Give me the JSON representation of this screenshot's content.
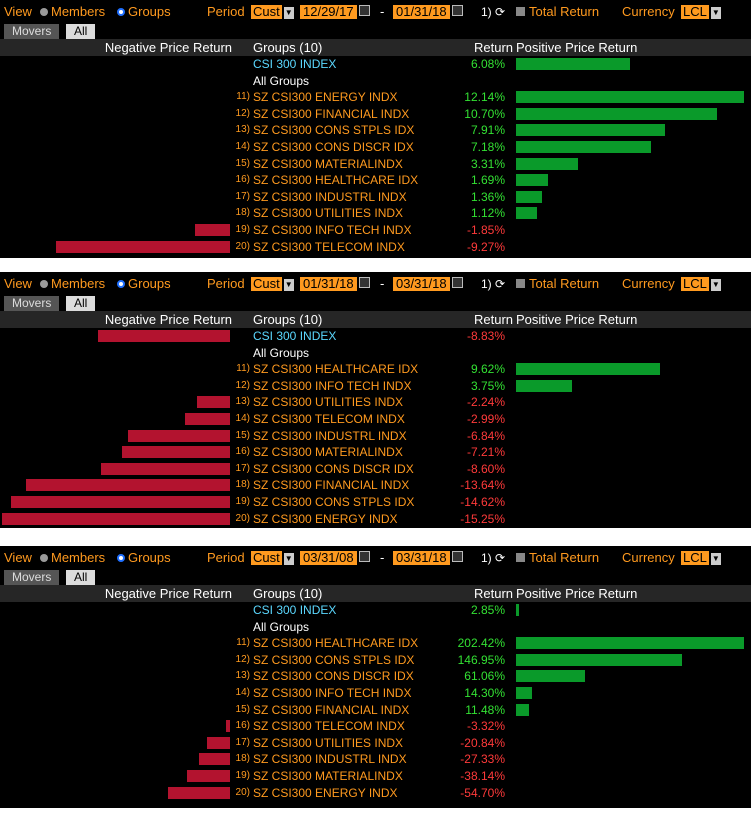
{
  "labels": {
    "view": "View",
    "members": "Members",
    "groups": "Groups",
    "period": "Period",
    "cust": "Cust",
    "dash": "-",
    "refresh": "1)",
    "total_return": "Total Return",
    "currency": "Currency",
    "lcl": "LCL",
    "tab_movers": "Movers",
    "tab_all": "All",
    "neg_header": "Negative Price Return",
    "groups_header": "Groups (10)",
    "return_header": "Return",
    "pos_header": "Positive Price Return",
    "all_groups": "All Groups"
  },
  "colors": {
    "accent": "#ff9a1f",
    "positive_bar": "#0a9a2a",
    "negative_bar": "#b3132f",
    "positive_text": "#33e133",
    "negative_text": "#ff3a3a",
    "index_text": "#5bd8ff"
  },
  "panels": [
    {
      "start_date": "12/29/17",
      "end_date": "01/31/18",
      "index": {
        "name": "CSI 300 INDEX",
        "ret": "6.08%",
        "value": 6.08
      },
      "max_pos": 12.14,
      "max_neg": 9.27,
      "groups": [
        {
          "num": "11)",
          "name": "SZ CSI300 ENERGY INDX",
          "ret": "12.14%",
          "value": 12.14
        },
        {
          "num": "12)",
          "name": "SZ CSI300 FINANCIAL INDX",
          "ret": "10.70%",
          "value": 10.7
        },
        {
          "num": "13)",
          "name": "SZ CSI300 CONS STPLS IDX",
          "ret": "7.91%",
          "value": 7.91
        },
        {
          "num": "14)",
          "name": "SZ CSI300 CONS DISCR IDX",
          "ret": "7.18%",
          "value": 7.18
        },
        {
          "num": "15)",
          "name": "SZ CSI300 MATERIALINDX",
          "ret": "3.31%",
          "value": 3.31
        },
        {
          "num": "16)",
          "name": "SZ CSI300 HEALTHCARE IDX",
          "ret": "1.69%",
          "value": 1.69
        },
        {
          "num": "17)",
          "name": "SZ CSI300 INDUSTRL INDX",
          "ret": "1.36%",
          "value": 1.36
        },
        {
          "num": "18)",
          "name": "SZ CSI300 UTILITIES INDX",
          "ret": "1.12%",
          "value": 1.12
        },
        {
          "num": "19)",
          "name": "SZ CSI300 INFO TECH INDX",
          "ret": "-1.85%",
          "value": -1.85
        },
        {
          "num": "20)",
          "name": "SZ CSI300 TELECOM INDX",
          "ret": "-9.27%",
          "value": -9.27
        }
      ]
    },
    {
      "start_date": "01/31/18",
      "end_date": "03/31/18",
      "index": {
        "name": "CSI 300 INDEX",
        "ret": "-8.83%",
        "value": -8.83
      },
      "max_pos": 9.62,
      "max_neg": 15.25,
      "groups": [
        {
          "num": "11)",
          "name": "SZ CSI300 HEALTHCARE IDX",
          "ret": "9.62%",
          "value": 9.62
        },
        {
          "num": "12)",
          "name": "SZ CSI300 INFO TECH INDX",
          "ret": "3.75%",
          "value": 3.75
        },
        {
          "num": "13)",
          "name": "SZ CSI300 UTILITIES INDX",
          "ret": "-2.24%",
          "value": -2.24
        },
        {
          "num": "14)",
          "name": "SZ CSI300 TELECOM INDX",
          "ret": "-2.99%",
          "value": -2.99
        },
        {
          "num": "15)",
          "name": "SZ CSI300 INDUSTRL INDX",
          "ret": "-6.84%",
          "value": -6.84
        },
        {
          "num": "16)",
          "name": "SZ CSI300 MATERIALINDX",
          "ret": "-7.21%",
          "value": -7.21
        },
        {
          "num": "17)",
          "name": "SZ CSI300 CONS DISCR IDX",
          "ret": "-8.60%",
          "value": -8.6
        },
        {
          "num": "18)",
          "name": "SZ CSI300 FINANCIAL INDX",
          "ret": "-13.64%",
          "value": -13.64
        },
        {
          "num": "19)",
          "name": "SZ CSI300 CONS STPLS IDX",
          "ret": "-14.62%",
          "value": -14.62
        },
        {
          "num": "20)",
          "name": "SZ CSI300 ENERGY INDX",
          "ret": "-15.25%",
          "value": -15.25
        }
      ]
    },
    {
      "start_date": "03/31/08",
      "end_date": "03/31/18",
      "index": {
        "name": "CSI 300 INDEX",
        "ret": "2.85%",
        "value": 2.85
      },
      "max_pos": 202.42,
      "max_neg": 54.7,
      "groups": [
        {
          "num": "11)",
          "name": "SZ CSI300 HEALTHCARE IDX",
          "ret": "202.42%",
          "value": 202.42
        },
        {
          "num": "12)",
          "name": "SZ CSI300 CONS STPLS IDX",
          "ret": "146.95%",
          "value": 146.95
        },
        {
          "num": "13)",
          "name": "SZ CSI300 CONS DISCR IDX",
          "ret": "61.06%",
          "value": 61.06
        },
        {
          "num": "14)",
          "name": "SZ CSI300 INFO TECH INDX",
          "ret": "14.30%",
          "value": 14.3
        },
        {
          "num": "15)",
          "name": "SZ CSI300 FINANCIAL INDX",
          "ret": "11.48%",
          "value": 11.48
        },
        {
          "num": "16)",
          "name": "SZ CSI300 TELECOM INDX",
          "ret": "-3.32%",
          "value": -3.32
        },
        {
          "num": "17)",
          "name": "SZ CSI300 UTILITIES INDX",
          "ret": "-20.84%",
          "value": -20.84
        },
        {
          "num": "18)",
          "name": "SZ CSI300 INDUSTRL INDX",
          "ret": "-27.33%",
          "value": -27.33
        },
        {
          "num": "19)",
          "name": "SZ CSI300 MATERIALINDX",
          "ret": "-38.14%",
          "value": -38.14
        },
        {
          "num": "20)",
          "name": "SZ CSI300 ENERGY INDX",
          "ret": "-54.70%",
          "value": -54.7
        }
      ]
    }
  ]
}
